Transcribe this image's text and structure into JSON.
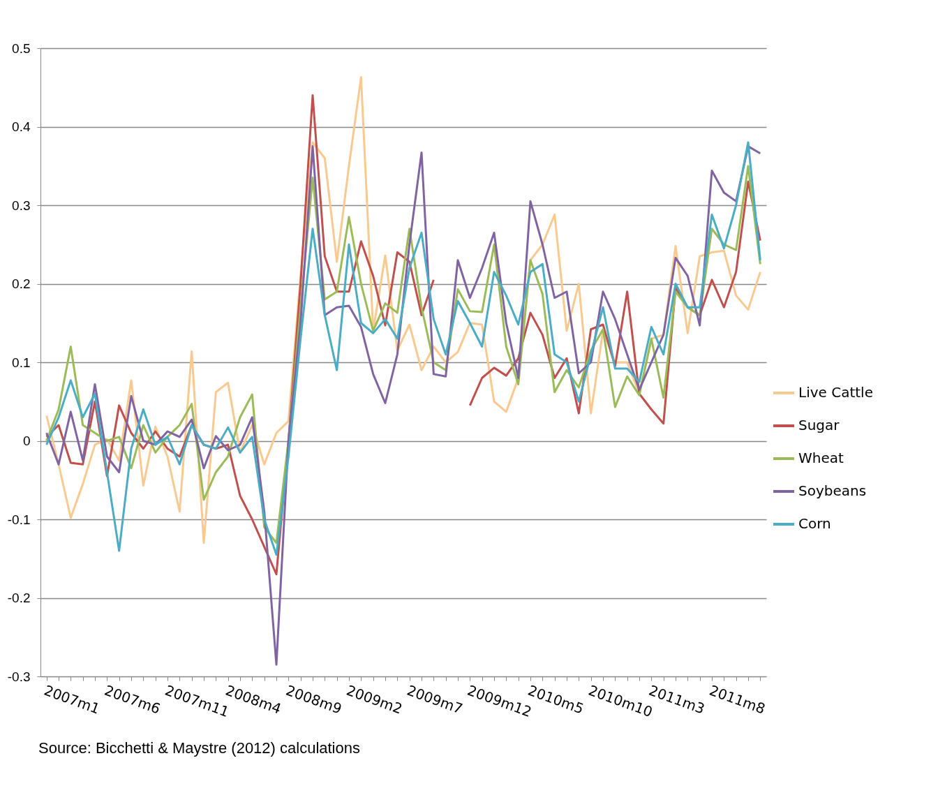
{
  "chart_data": {
    "type": "line",
    "categories": [
      "2007m1",
      null,
      null,
      null,
      null,
      "2007m6",
      null,
      null,
      null,
      null,
      "2007m11",
      null,
      null,
      null,
      null,
      "2008m4",
      null,
      null,
      null,
      null,
      "2008m9",
      null,
      null,
      null,
      null,
      "2009m2",
      null,
      null,
      null,
      null,
      "2009m7",
      null,
      null,
      null,
      null,
      "2009m12",
      null,
      null,
      null,
      null,
      "2010m5",
      null,
      null,
      null,
      null,
      "2010m10",
      null,
      null,
      null,
      null,
      "2011m3",
      null,
      null,
      null,
      null,
      "2011m8",
      null,
      null,
      null,
      null
    ],
    "series": [
      {
        "name": "Live Cattle",
        "color": "#fac98f",
        "values": [
          0.032,
          -0.03,
          -0.098,
          -0.055,
          -0.005,
          0.002,
          -0.025,
          0.077,
          -0.057,
          0.018,
          -0.02,
          -0.09,
          0.114,
          -0.13,
          0.062,
          0.074,
          -0.015,
          0.02,
          -0.03,
          0.01,
          0.025,
          0.21,
          0.38,
          0.36,
          0.228,
          0.35,
          0.463,
          0.14,
          0.236,
          0.115,
          0.148,
          0.09,
          0.12,
          0.1,
          0.113,
          0.15,
          0.148,
          0.05,
          0.037,
          0.08,
          0.23,
          0.25,
          0.288,
          0.14,
          0.2,
          0.035,
          0.14,
          0.1,
          0.1,
          0.06,
          0.13,
          0.135,
          0.248,
          0.137,
          0.235,
          0.24,
          0.242,
          0.185,
          0.167,
          0.215
        ]
      },
      {
        "name": "Sugar",
        "color": "#c0504d",
        "values": [
          0.005,
          0.02,
          -0.028,
          -0.03,
          0.05,
          -0.045,
          0.045,
          0.01,
          -0.01,
          0.012,
          -0.01,
          -0.02,
          0.02,
          -0.005,
          -0.01,
          -0.005,
          -0.07,
          -0.1,
          -0.135,
          -0.17,
          0.0,
          0.2,
          0.44,
          0.235,
          0.19,
          0.19,
          0.254,
          0.21,
          0.147,
          0.24,
          0.228,
          0.16,
          0.205,
          null,
          null,
          0.045,
          0.08,
          0.093,
          0.083,
          0.105,
          0.163,
          0.135,
          0.08,
          0.105,
          0.035,
          0.142,
          0.148,
          0.095,
          0.19,
          0.06,
          0.04,
          0.022,
          0.195,
          0.17,
          0.16,
          0.205,
          0.17,
          0.215,
          0.33,
          0.255
        ]
      },
      {
        "name": "Wheat",
        "color": "#9bbb59",
        "values": [
          0.0,
          0.04,
          0.12,
          0.02,
          0.01,
          0.0,
          0.005,
          -0.035,
          0.02,
          -0.015,
          0.005,
          0.02,
          0.047,
          -0.075,
          -0.04,
          -0.02,
          0.03,
          0.059,
          -0.11,
          -0.13,
          0.0,
          0.17,
          0.335,
          0.18,
          0.19,
          0.285,
          0.2,
          0.14,
          0.175,
          0.163,
          0.27,
          0.17,
          0.1,
          0.09,
          0.193,
          0.165,
          0.164,
          0.25,
          0.12,
          0.072,
          0.23,
          0.187,
          0.062,
          0.09,
          0.068,
          0.115,
          0.142,
          0.043,
          0.082,
          0.058,
          0.13,
          0.055,
          0.19,
          0.17,
          0.16,
          0.27,
          0.25,
          0.243,
          0.35,
          0.225
        ]
      },
      {
        "name": "Soybeans",
        "color": "#8064a2",
        "values": [
          0.01,
          -0.03,
          0.037,
          -0.025,
          0.072,
          -0.02,
          -0.04,
          0.057,
          0.0,
          -0.005,
          0.012,
          0.005,
          0.027,
          -0.035,
          0.006,
          -0.012,
          -0.005,
          0.03,
          -0.09,
          -0.285,
          0.0,
          0.15,
          0.375,
          0.16,
          0.17,
          0.172,
          0.145,
          0.085,
          0.048,
          0.11,
          0.25,
          0.367,
          0.085,
          0.082,
          0.23,
          0.182,
          0.22,
          0.265,
          0.15,
          0.08,
          0.305,
          0.25,
          0.182,
          0.19,
          0.086,
          0.1,
          0.19,
          0.155,
          0.11,
          0.065,
          0.1,
          0.135,
          0.233,
          0.21,
          0.147,
          0.344,
          0.316,
          0.305,
          0.375,
          0.366
        ]
      },
      {
        "name": "Corn",
        "color": "#4bacc6",
        "values": [
          -0.005,
          0.03,
          0.077,
          0.03,
          0.06,
          -0.04,
          -0.14,
          -0.01,
          0.04,
          -0.005,
          0.005,
          -0.03,
          0.02,
          -0.005,
          -0.01,
          0.017,
          -0.015,
          0.005,
          -0.1,
          -0.145,
          -0.02,
          0.13,
          0.27,
          0.16,
          0.09,
          0.25,
          0.15,
          0.137,
          0.155,
          0.13,
          0.22,
          0.265,
          0.155,
          0.11,
          0.178,
          0.15,
          0.12,
          0.215,
          0.185,
          0.148,
          0.215,
          0.225,
          0.11,
          0.1,
          0.05,
          0.11,
          0.17,
          0.092,
          0.092,
          0.075,
          0.145,
          0.11,
          0.2,
          0.17,
          0.17,
          0.288,
          0.245,
          0.3,
          0.38,
          0.23
        ]
      }
    ],
    "ylim": [
      -0.3,
      0.5
    ],
    "yticks": [
      -0.3,
      -0.2,
      -0.1,
      0,
      0.1,
      0.2,
      0.3,
      0.4,
      0.5
    ],
    "grid": "y",
    "legend": "right",
    "line_style": "solid",
    "annotations": [
      "Source: Bicchetti & Maystre (2012) calculations"
    ]
  }
}
